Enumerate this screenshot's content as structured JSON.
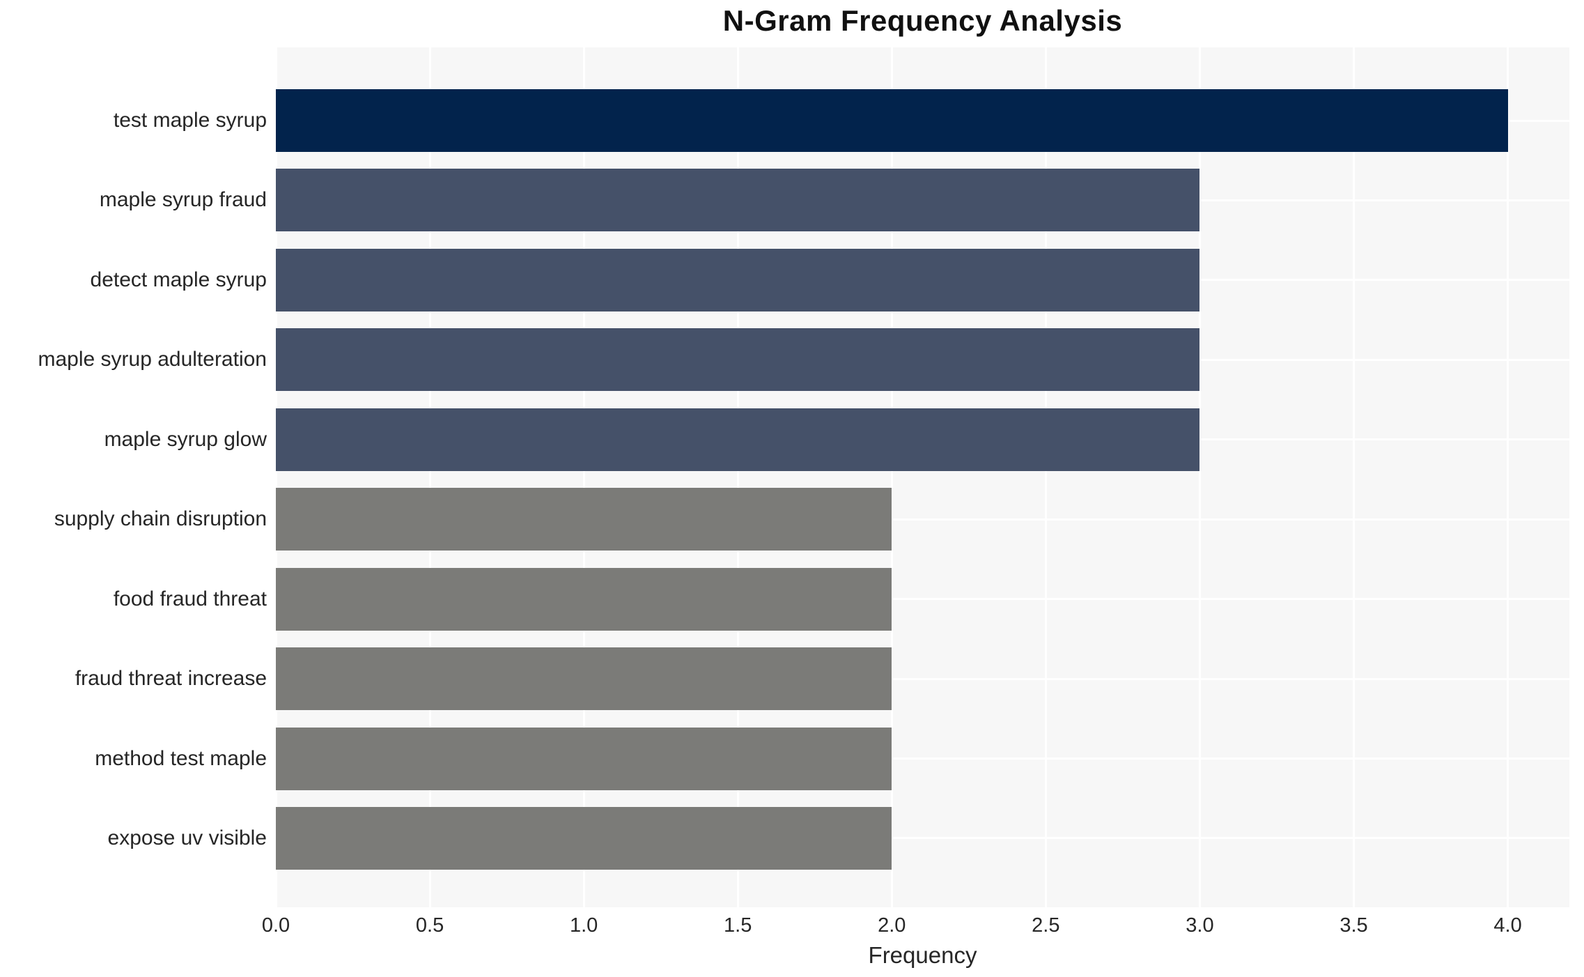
{
  "chart_data": {
    "type": "bar",
    "orientation": "horizontal",
    "title": "N-Gram Frequency Analysis",
    "xlabel": "Frequency",
    "ylabel": "",
    "categories": [
      "test maple syrup",
      "maple syrup fraud",
      "detect maple syrup",
      "maple syrup adulteration",
      "maple syrup glow",
      "supply chain disruption",
      "food fraud threat",
      "fraud threat increase",
      "method test maple",
      "expose uv visible"
    ],
    "values": [
      4.0,
      3.0,
      3.0,
      3.0,
      3.0,
      2.0,
      2.0,
      2.0,
      2.0,
      2.0
    ],
    "bar_colors": [
      "#02234c",
      "#455169",
      "#455169",
      "#455169",
      "#455169",
      "#7b7b78",
      "#7b7b78",
      "#7b7b78",
      "#7b7b78",
      "#7b7b78"
    ],
    "x_ticks": [
      "0.0",
      "0.5",
      "1.0",
      "1.5",
      "2.0",
      "2.5",
      "3.0",
      "3.5",
      "4.0"
    ],
    "x_tick_values": [
      0,
      0.5,
      1,
      1.5,
      2,
      2.5,
      3,
      3.5,
      4
    ],
    "xlim": [
      0,
      4.2
    ],
    "grid": true,
    "legend": false,
    "plot_bg_color": "#f7f7f7",
    "grid_color": "#ffffff",
    "title_color": "#111111",
    "text_color": "#262626"
  }
}
